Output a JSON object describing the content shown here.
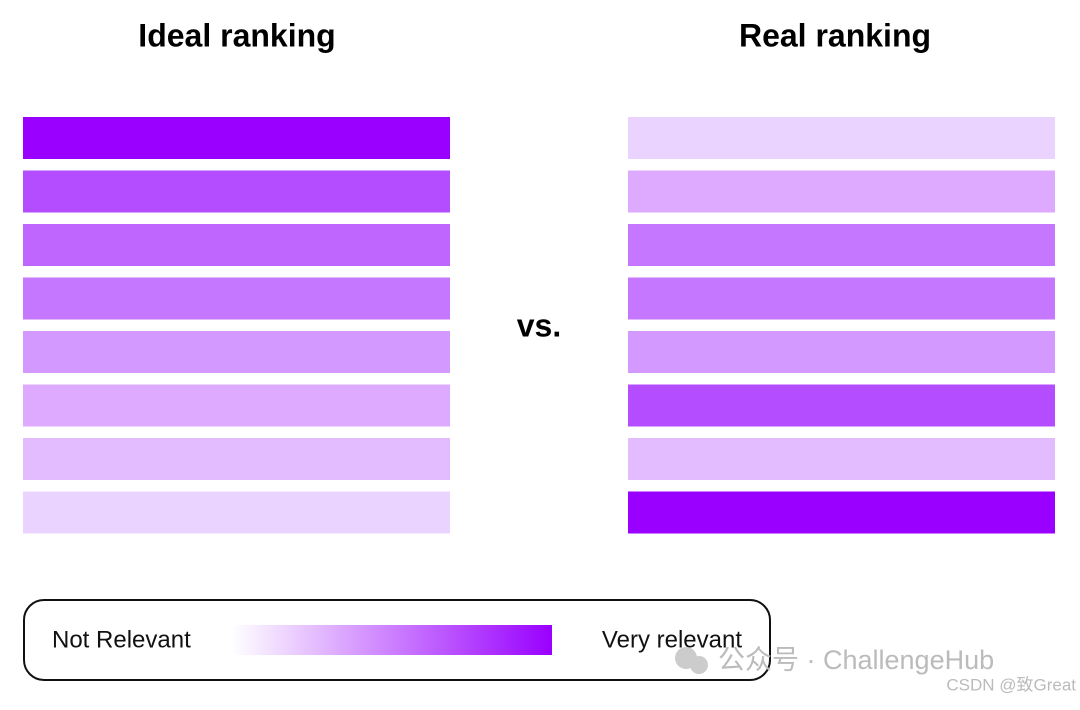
{
  "ideal": {
    "title": "Ideal ranking",
    "colors": [
      "#9900ff",
      "#b34dff",
      "#bf66ff",
      "#c577ff",
      "#d399ff",
      "#ddaaff",
      "#e3bcff",
      "#ebd3ff"
    ]
  },
  "real": {
    "title": "Real ranking",
    "colors": [
      "#ebd3ff",
      "#ddaaff",
      "#c577ff",
      "#c577ff",
      "#d399ff",
      "#b34dff",
      "#e3bcff",
      "#9900ff"
    ]
  },
  "separator": "vs.",
  "legend": {
    "low": "Not Relevant",
    "high": "Very relevant",
    "low_color": "#ffffff",
    "high_color": "#9900ff"
  },
  "watermark": {
    "account": "公众号 · ChallengeHub",
    "source": "CSDN @致Great"
  }
}
